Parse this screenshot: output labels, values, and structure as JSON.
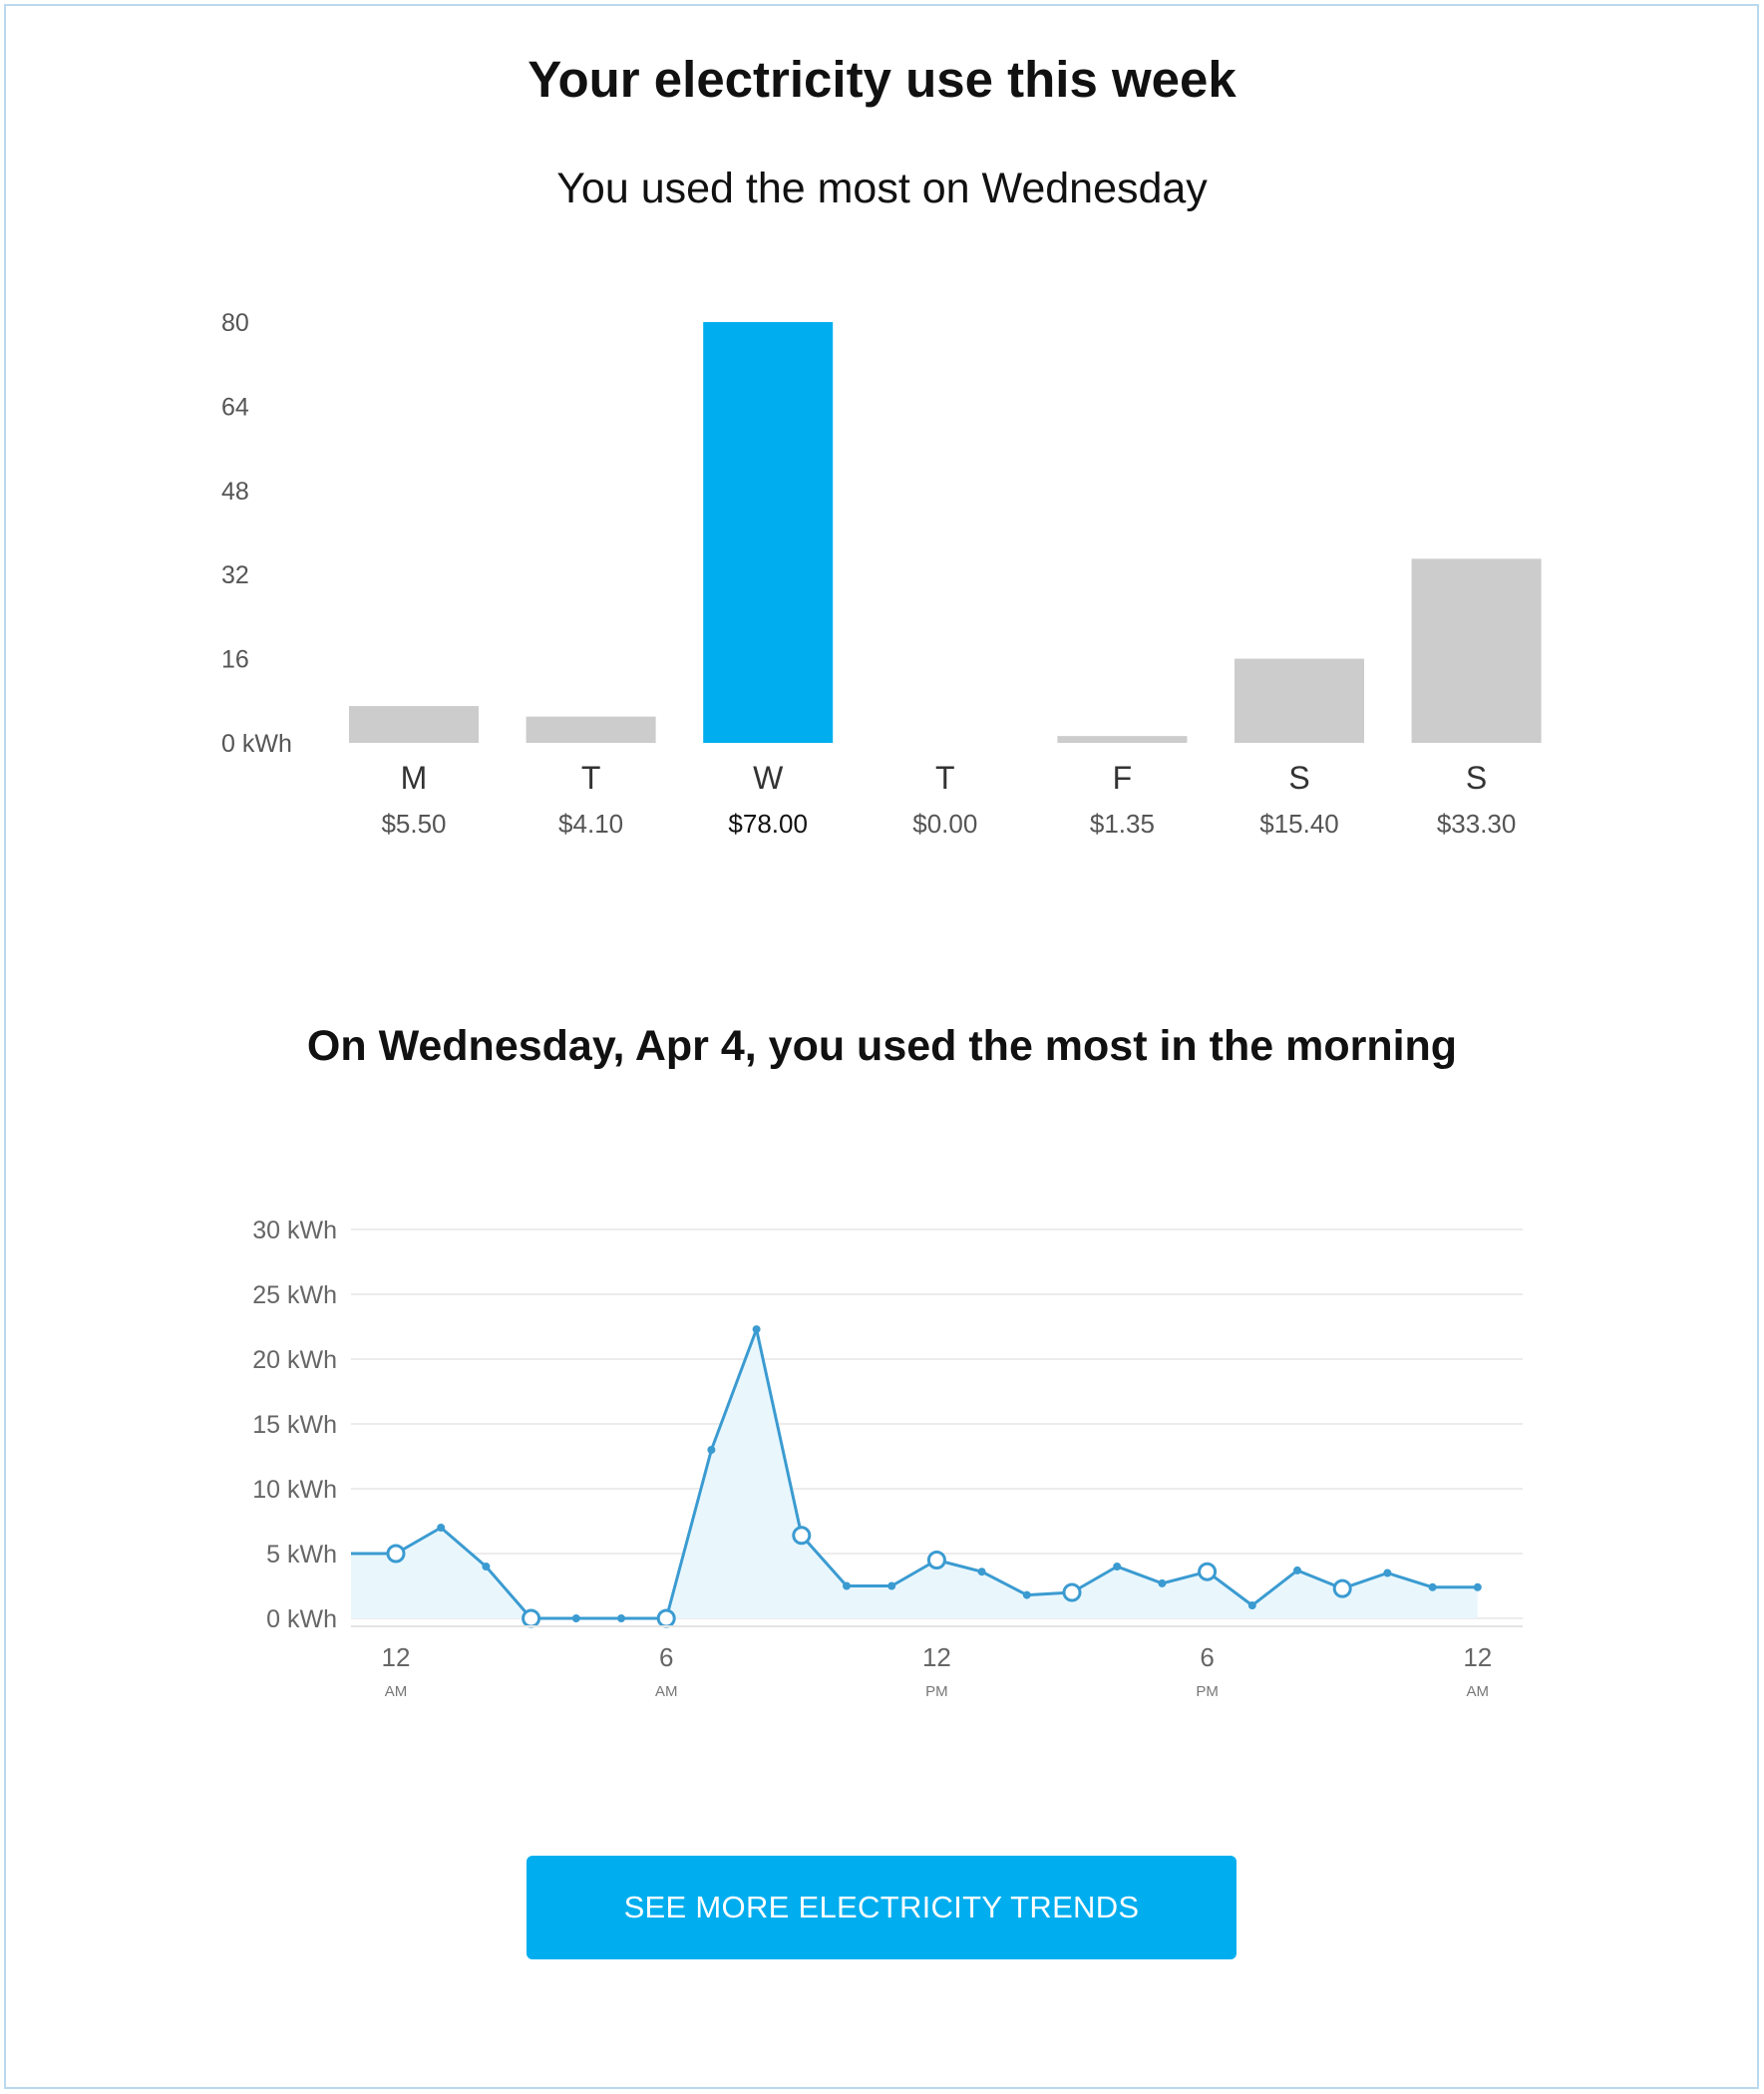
{
  "header": {
    "title": "Your electricity use this week",
    "subtitle": "You used the most on Wednesday"
  },
  "daily_section": {
    "y_ticks": [
      "80",
      "64",
      "48",
      "32",
      "16",
      "0 kWh"
    ],
    "days": [
      {
        "label": "M",
        "cost": "$5.50",
        "highlight": false
      },
      {
        "label": "T",
        "cost": "$4.10",
        "highlight": false
      },
      {
        "label": "W",
        "cost": "$78.00",
        "highlight": true
      },
      {
        "label": "T",
        "cost": "$0.00",
        "highlight": false
      },
      {
        "label": "F",
        "cost": "$1.35",
        "highlight": false
      },
      {
        "label": "S",
        "cost": "$15.40",
        "highlight": false
      },
      {
        "label": "S",
        "cost": "$33.30",
        "highlight": false
      }
    ]
  },
  "hourly_section": {
    "heading": "On Wednesday, Apr 4, you used the most in the morning",
    "y_ticks": [
      "30 kWh",
      "25 kWh",
      "20 kWh",
      "15 kWh",
      "10 kWh",
      "5 kWh",
      "0 kWh"
    ],
    "x_ticks": [
      {
        "main": "12",
        "sub": "AM"
      },
      {
        "main": "6",
        "sub": "AM"
      },
      {
        "main": "12",
        "sub": "PM"
      },
      {
        "main": "6",
        "sub": "PM"
      },
      {
        "main": "12",
        "sub": "AM"
      }
    ]
  },
  "cta": {
    "label": "SEE MORE ELECTRICITY TRENDS"
  },
  "colors": {
    "accent": "#00aeef",
    "bar_gray": "#cccccc",
    "line": "#3b9bd1",
    "area_fill": "#e9f7fd",
    "grid": "#ececec",
    "tick_text": "#555555"
  },
  "chart_data": [
    {
      "type": "bar",
      "categories": [
        "M",
        "T",
        "W",
        "T",
        "F",
        "S",
        "S"
      ],
      "values": [
        7,
        5,
        80,
        0,
        1.3,
        16,
        35
      ],
      "ylim": [
        0,
        80
      ],
      "ylabel": "kWh",
      "highlight_index": 2
    },
    {
      "type": "area",
      "x": [
        0,
        1,
        2,
        3,
        4,
        5,
        6,
        7,
        8,
        9,
        10,
        11,
        12,
        13,
        14,
        15,
        16,
        17,
        18,
        19,
        20,
        21,
        22,
        23,
        24
      ],
      "values": [
        5,
        7,
        4,
        0,
        0,
        0,
        0,
        13,
        22.3,
        6.4,
        2.5,
        2.5,
        4.5,
        3.6,
        1.8,
        2,
        4,
        2.7,
        3.6,
        1,
        3.7,
        2.3,
        3.5,
        2.4,
        2.4
      ],
      "markers": [
        0,
        3,
        6,
        9,
        12,
        15,
        18,
        21
      ],
      "ylim": [
        0,
        30
      ],
      "xlim": [
        -1,
        24
      ]
    }
  ]
}
